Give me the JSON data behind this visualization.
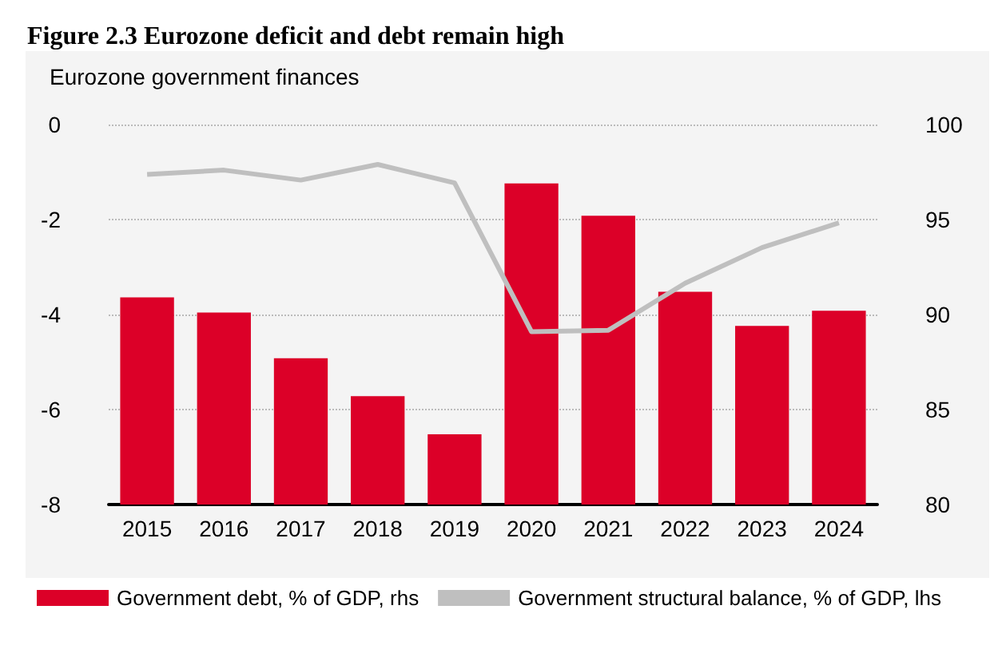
{
  "chart_data": {
    "type": "bar",
    "title": "Figure 2.3 Eurozone deficit and debt remain high",
    "subtitle": "Eurozone government finances",
    "categories": [
      "2015",
      "2016",
      "2017",
      "2018",
      "2019",
      "2020",
      "2021",
      "2022",
      "2023",
      "2024"
    ],
    "series": [
      {
        "name": "Government debt, % of GDP, rhs",
        "axis": "y2",
        "color": "#dc0028",
        "values": [
          90.9,
          90.1,
          87.7,
          85.7,
          83.7,
          96.9,
          95.2,
          91.2,
          89.4,
          90.2
        ]
      },
      {
        "name": "Government structural balance, % of GDP, lhs",
        "type": "line",
        "color": "#bfbfbf",
        "values": [
          -1.05,
          -0.96,
          -1.17,
          -0.84,
          -1.23,
          -4.36,
          -4.33,
          -3.34,
          -2.59,
          -2.07
        ]
      }
    ],
    "ylim": [
      -8,
      0
    ],
    "yticks": [
      -8,
      -6,
      -4,
      -2,
      0
    ],
    "y2lim": [
      80,
      100
    ],
    "y2ticks": [
      80,
      85,
      90,
      95,
      100
    ],
    "grid": "y",
    "legend": "bottom",
    "marker": "none",
    "line_style": "solid"
  }
}
